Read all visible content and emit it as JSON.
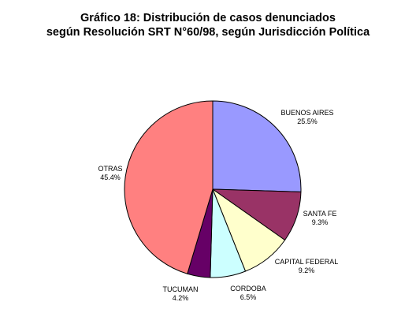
{
  "chart_data": {
    "type": "pie",
    "title_line1": "Gráfico 18: Distribución de casos denunciados",
    "title_line2": "según Resolución SRT N°60/98, según Jurisdicción Política",
    "slices": [
      {
        "name": "BUENOS AIRES",
        "value": 25.5,
        "value_label": "25.5%",
        "color": "#9999ff"
      },
      {
        "name": "SANTA FE",
        "value": 9.3,
        "value_label": "9.3%",
        "color": "#993366"
      },
      {
        "name": "CAPITAL FEDERAL",
        "value": 9.2,
        "value_label": "9.2%",
        "color": "#ffffcc"
      },
      {
        "name": "CORDOBA",
        "value": 6.5,
        "value_label": "6.5%",
        "color": "#ccffff"
      },
      {
        "name": "TUCUMAN",
        "value": 4.2,
        "value_label": "4.2%",
        "color": "#660066"
      },
      {
        "name": "OTRAS",
        "value": 45.4,
        "value_label": "45.4%",
        "color": "#ff8080"
      }
    ]
  }
}
